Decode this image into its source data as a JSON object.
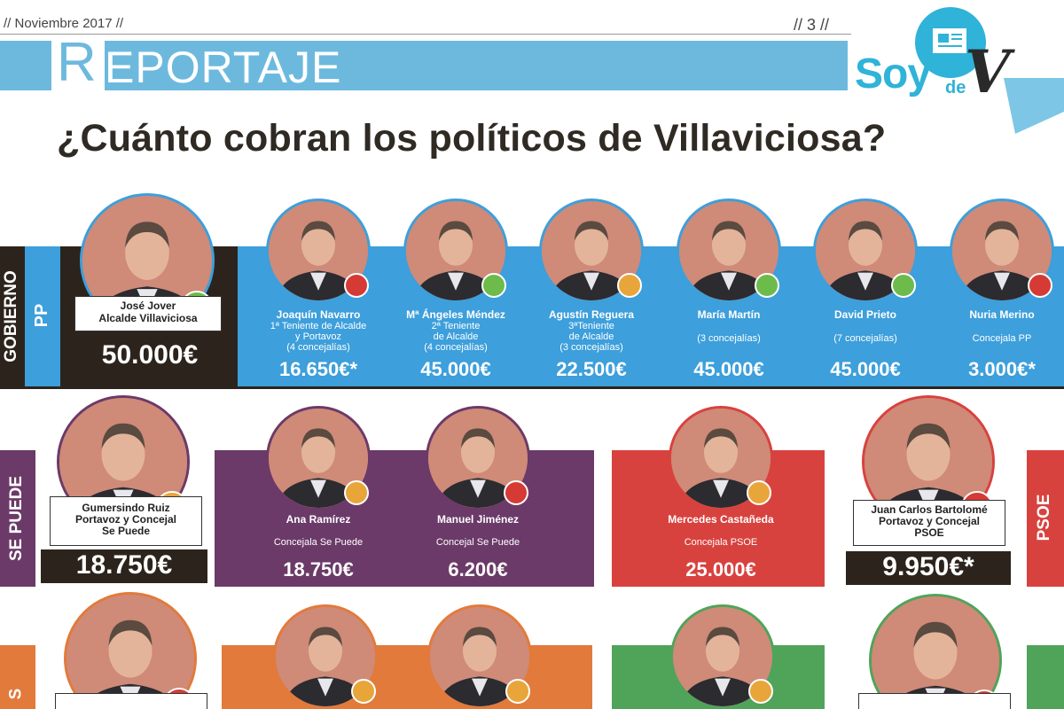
{
  "header": {
    "date": "// Noviembre 2017 //",
    "page_no": "// 3 //",
    "section": "REPORTAJE",
    "section_first": "R",
    "section_rest": "EPORTAJE",
    "logo_soy": "Soy",
    "logo_de": "de",
    "logo_v": "V"
  },
  "title": "¿Cuánto cobran los políticos de Villaviciosa?",
  "colors": {
    "blue": "#3d9fdb",
    "dark": "#2c241c",
    "purple": "#6b3a68",
    "red": "#d8423e",
    "green": "#4fa45a",
    "orange": "#e27a3b"
  },
  "gobierno": {
    "side_label": "GOBIERNO",
    "party": "PP",
    "leader": {
      "name": "José Jover",
      "role": "Alcalde Villaviciosa",
      "salary": "50.000€",
      "dot": "green"
    },
    "members": [
      {
        "name": "Joaquín Navarro",
        "role": "1ª Teniente de Alcalde\ny Portavoz\n(4 concejalías)",
        "salary": "16.650€*",
        "dot": "red"
      },
      {
        "name": "Mª Ángeles Méndez",
        "role": "2ª Teniente\nde Alcalde\n(4 concejalías)",
        "salary": "45.000€",
        "dot": "green"
      },
      {
        "name": "Agustín Reguera",
        "role": "3ªTeniente\nde Alcalde\n(3 concejalías)",
        "salary": "22.500€",
        "dot": "orange"
      },
      {
        "name": "María Martín",
        "role": "(3 concejalías)",
        "salary": "45.000€",
        "dot": "green"
      },
      {
        "name": "David Prieto",
        "role": "(7 concejalías)",
        "salary": "45.000€",
        "dot": "green"
      },
      {
        "name": "Nuria Merino",
        "role": "Concejala PP",
        "salary": "3.000€*",
        "dot": "red"
      }
    ]
  },
  "sepuede": {
    "side_label": "SE PUEDE",
    "leader": {
      "name": "Gumersindo Ruiz\nPortavoz y Concejal\nSe Puede",
      "salary": "18.750€",
      "dot": "orange"
    },
    "members": [
      {
        "name": "Ana Ramírez",
        "role": "Concejala Se Puede",
        "salary": "18.750€",
        "dot": "orange"
      },
      {
        "name": "Manuel Jiménez",
        "role": "Concejal Se Puede",
        "salary": "6.200€",
        "dot": "red"
      }
    ]
  },
  "psoe": {
    "side_label": "PSOE",
    "member": {
      "name": "Mercedes Castañeda",
      "role": "Concejala PSOE",
      "salary": "25.000€",
      "dot": "orange"
    },
    "leader": {
      "name": "Juan Carlos Bartolomé\nPortavoz y Concejal\nPSOE",
      "salary": "9.950€*",
      "dot": "red"
    }
  },
  "row3": {
    "side_label": "S"
  }
}
